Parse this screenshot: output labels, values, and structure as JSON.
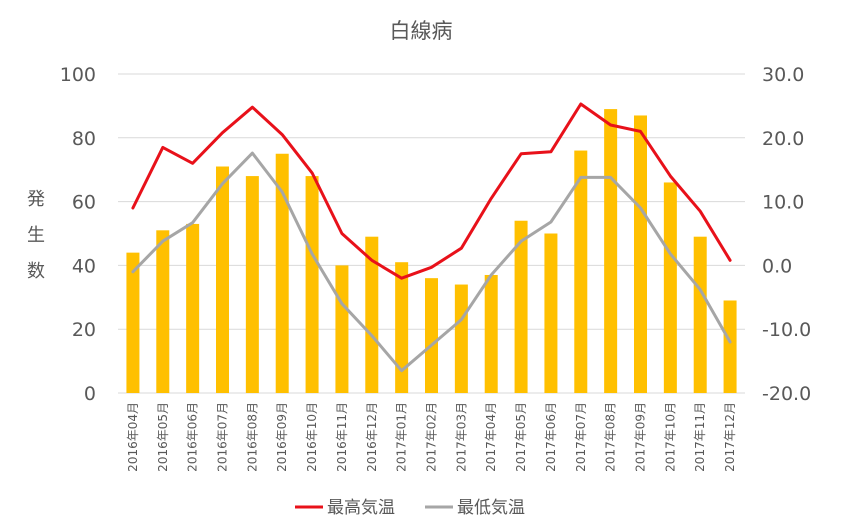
{
  "chart_data": {
    "type": "bar+line",
    "title": "白線病",
    "ylabel": "発生数",
    "y_ticks_left": [
      "0",
      "20",
      "40",
      "60",
      "80",
      "100"
    ],
    "y_ticks_right": [
      "-20.0",
      "-10.0",
      "0.0",
      "10.0",
      "20.0",
      "30.0"
    ],
    "ylim_left": [
      0,
      100
    ],
    "ylim_right": [
      -20,
      30
    ],
    "grid": true,
    "legend_position": "bottom",
    "categories": [
      "2016年04月",
      "2016年05月",
      "2016年06月",
      "2016年07月",
      "2016年08月",
      "2016年09月",
      "2016年10月",
      "2016年11月",
      "2016年12月",
      "2017年01月",
      "2017年02月",
      "2017年03月",
      "2017年04月",
      "2017年05月",
      "2017年06月",
      "2017年07月",
      "2017年08月",
      "2017年09月",
      "2017年10月",
      "2017年11月",
      "2017年12月"
    ],
    "bar_series": {
      "values": [
        44,
        51,
        53,
        71,
        68,
        75,
        68,
        40,
        49,
        41,
        36,
        34,
        37,
        54,
        50,
        76,
        89,
        87,
        66,
        49,
        29
      ],
      "color": "#ffc000",
      "axis": "left"
    },
    "line_series": [
      {
        "name": "最高気温",
        "color": "#e8111a",
        "axis": "right",
        "values": [
          9.0,
          18.5,
          16.0,
          20.8,
          24.8,
          20.5,
          14.5,
          5.0,
          0.8,
          -2.0,
          -0.3,
          2.7,
          10.5,
          17.5,
          17.8,
          25.3,
          22.0,
          21.0,
          14.0,
          8.5,
          0.8
        ]
      },
      {
        "name": "最低気温",
        "color": "#a6a6a6",
        "axis": "right",
        "values": [
          -1.0,
          3.8,
          6.7,
          12.8,
          17.6,
          11.5,
          1.8,
          -6.0,
          -11.0,
          -16.5,
          -12.5,
          -8.5,
          -1.5,
          3.8,
          6.8,
          13.8,
          13.8,
          9.0,
          1.8,
          -3.8,
          -12.0
        ]
      }
    ]
  }
}
